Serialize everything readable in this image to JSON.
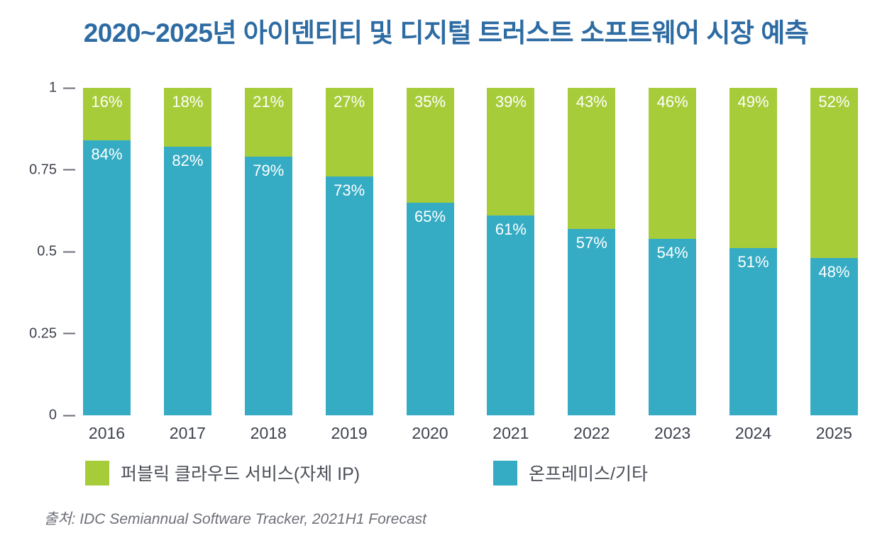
{
  "title": "2020~2025년 아이덴티티 및 디지털 트러스트 소프트웨어 시장 예측",
  "source": "출처: IDC Semiannual Software Tracker, 2021H1 Forecast",
  "colors": {
    "title_text": "#2d6ba3",
    "public_cloud_green": "#a7cc3a",
    "onprem_teal": "#35acc4",
    "axis_text": "#3e424e",
    "legend_text": "#4b4e57",
    "source_text": "#6e7078",
    "background": "#ffffff"
  },
  "legend": {
    "items": [
      {
        "label": "퍼블릭 클라우드 서비스(자체 IP)",
        "color": "#a7cc3a"
      },
      {
        "label": "온프레미스/기타",
        "color": "#35acc4"
      }
    ]
  },
  "chart_data": {
    "type": "bar",
    "stacked": true,
    "title": "2020~2025년 아이덴티티 및 디지털 트러스트 소프트웨어 시장 예측",
    "categories": [
      "2016",
      "2017",
      "2018",
      "2019",
      "2020",
      "2021",
      "2022",
      "2023",
      "2024",
      "2025"
    ],
    "series": [
      {
        "name": "퍼블릭 클라우드 서비스(자체 IP)",
        "color": "#a7cc3a",
        "stack_position": "top",
        "values": [
          16,
          18,
          21,
          27,
          35,
          39,
          43,
          46,
          49,
          52
        ],
        "unit": "%"
      },
      {
        "name": "온프레미스/기타",
        "color": "#35acc4",
        "stack_position": "bottom",
        "values": [
          84,
          82,
          79,
          73,
          65,
          61,
          57,
          54,
          51,
          48
        ],
        "unit": "%"
      }
    ],
    "xlabel": "",
    "ylabel": "",
    "ylim": [
      0,
      1
    ],
    "ytick_labels": [
      "1",
      "0.75",
      "0.5",
      "0.25",
      "0"
    ],
    "grid": false,
    "value_labels": "inside-top-of-segment",
    "legend_position": "bottom"
  }
}
